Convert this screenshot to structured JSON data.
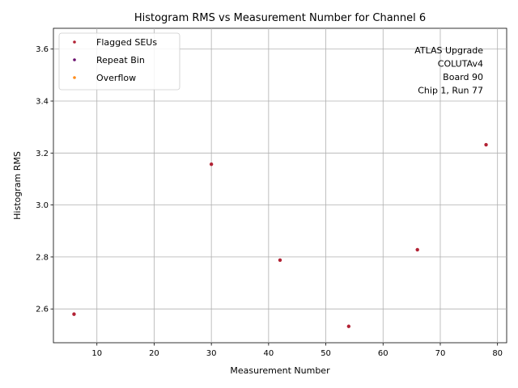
{
  "chart_data": {
    "type": "scatter",
    "title": "Histogram RMS vs Measurement Number for Channel 6",
    "xlabel": "Measurement Number",
    "ylabel": "Histogram RMS",
    "xlim": [
      2.4,
      81.6
    ],
    "ylim": [
      2.47,
      3.68
    ],
    "xticks": [
      10,
      20,
      30,
      40,
      50,
      60,
      70,
      80
    ],
    "yticks": [
      2.6,
      2.8,
      3.0,
      3.2,
      3.4,
      3.6
    ],
    "grid": true,
    "legend_position": "top-left",
    "series": [
      {
        "name": "Flagged SEUs",
        "color": "#b22234",
        "points": [
          {
            "x": 6,
            "y": 2.58
          },
          {
            "x": 30,
            "y": 3.157
          },
          {
            "x": 42,
            "y": 2.788
          },
          {
            "x": 54,
            "y": 2.533
          },
          {
            "x": 66,
            "y": 2.828
          },
          {
            "x": 78,
            "y": 3.232
          }
        ]
      },
      {
        "name": "Repeat Bin",
        "color": "#6a0f6e",
        "points": []
      },
      {
        "name": "Overflow",
        "color": "#ff8c1a",
        "points": []
      }
    ],
    "annotation": [
      "ATLAS Upgrade",
      "COLUTAv4",
      "Board 90",
      "Chip 1, Run 77"
    ]
  }
}
